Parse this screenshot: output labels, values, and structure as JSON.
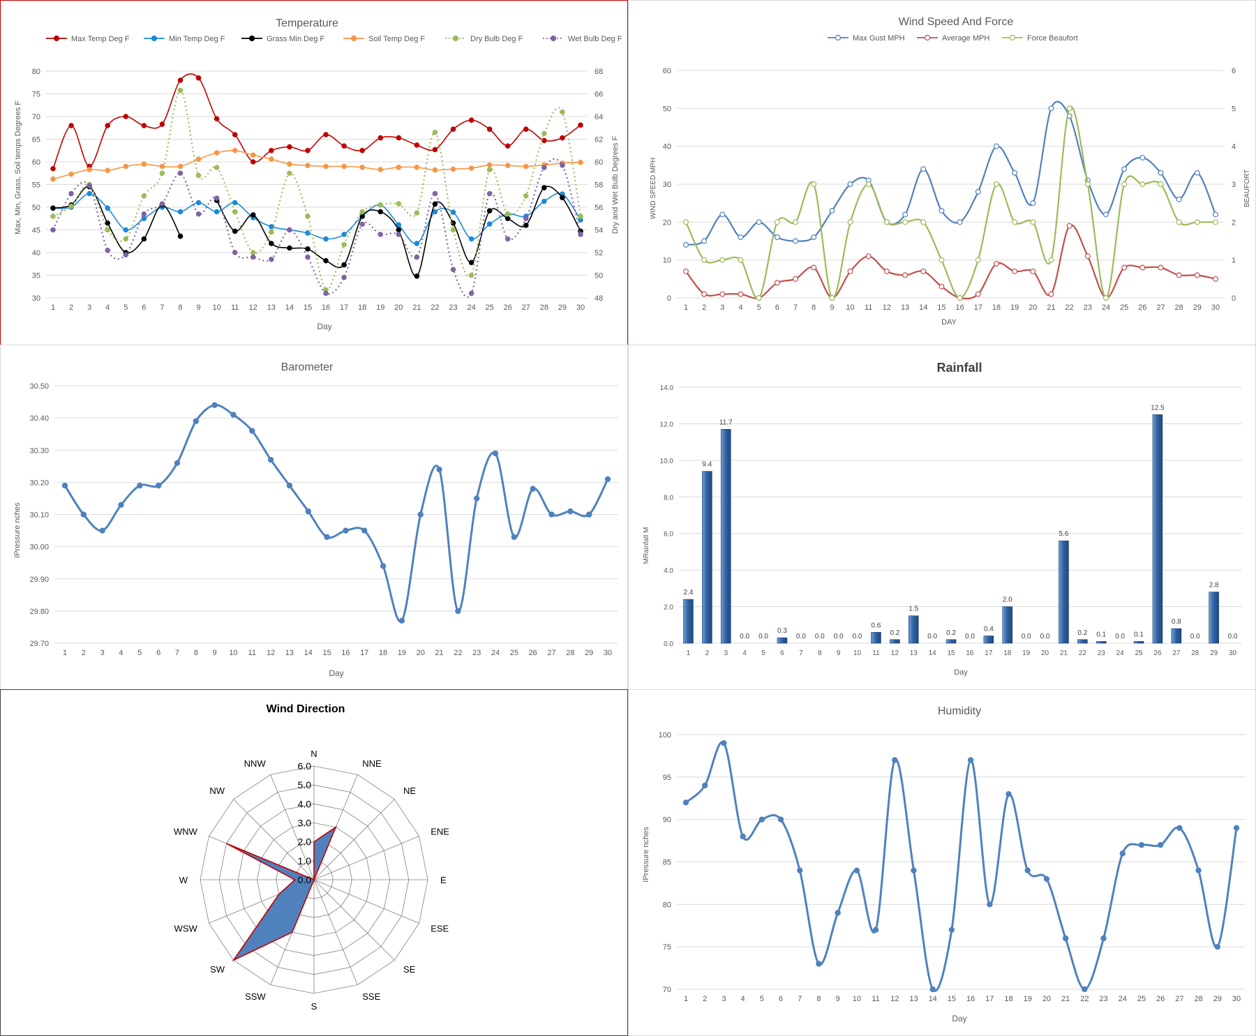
{
  "chart_data": [
    {
      "id": "temperature",
      "type": "line",
      "title": "Temperature",
      "xlabel": "Day",
      "ylabel": "Max, Min, Grass, Soil temps Degrees F",
      "y2label": "Dry and Wet Bulb Degrees F",
      "ylim": [
        30,
        80
      ],
      "y2lim": [
        48,
        68
      ],
      "legend": "top",
      "x": [
        1,
        2,
        3,
        4,
        5,
        6,
        7,
        8,
        9,
        10,
        11,
        12,
        13,
        14,
        15,
        16,
        17,
        18,
        19,
        20,
        21,
        22,
        23,
        24,
        25,
        26,
        27,
        28,
        29,
        30
      ],
      "series": [
        {
          "name": "Max Temp Deg F",
          "color": "#c00000",
          "axis": "left",
          "style": "solid",
          "values": [
            58.5,
            68,
            59,
            68,
            70,
            68,
            68.3,
            78,
            78.5,
            69.5,
            66,
            60,
            62.5,
            63.3,
            62.5,
            66,
            63.5,
            62.5,
            65.3,
            65.3,
            63.7,
            62.7,
            67.2,
            69.2,
            67.2,
            63.5,
            67.2,
            64.7,
            65.3,
            68.1
          ]
        },
        {
          "name": "Min Temp Deg F",
          "color": "#1a8ad8",
          "axis": "left",
          "style": "solid",
          "values": [
            49.8,
            50,
            53,
            49.8,
            45,
            47.5,
            50,
            49,
            51,
            49,
            51,
            47.7,
            45.7,
            45,
            44.3,
            43,
            44,
            48,
            50.5,
            46.1,
            42,
            49,
            48.9,
            43,
            46.3,
            48.5,
            48,
            51.3,
            52.9,
            47.2
          ]
        },
        {
          "name": "Grass Min Deg F",
          "color": "#000000",
          "axis": "left",
          "style": "solid",
          "values": [
            49.8,
            50.5,
            54.5,
            46.5,
            40,
            43,
            50.5,
            43.6,
            null,
            51.5,
            44.7,
            48.3,
            42,
            41,
            40.8,
            38.2,
            37.3,
            48,
            49,
            45,
            34.8,
            50.7,
            46.5,
            37.8,
            49.2,
            47.5,
            46,
            54.3,
            52.1,
            44.7
          ]
        },
        {
          "name": "Soil Temp Deg F",
          "color": "#f79646",
          "axis": "left",
          "style": "solid",
          "values": [
            56.2,
            57.3,
            58.3,
            58.1,
            59,
            59.5,
            59,
            59,
            60.6,
            62,
            62.5,
            61.5,
            60.6,
            59.5,
            59.2,
            59,
            59,
            58.8,
            58.3,
            58.8,
            58.8,
            58.2,
            58.4,
            58.6,
            59.3,
            59.2,
            59,
            59.3,
            59.7,
            59.9
          ]
        },
        {
          "name": "Dry Bulb Deg F",
          "color": "#9bbb59",
          "axis": "right",
          "style": "dotted",
          "values": [
            55.2,
            56.1,
            58,
            54,
            53.2,
            57,
            59,
            66.3,
            58.8,
            59.5,
            55.6,
            52,
            53.8,
            59,
            55.2,
            48.7,
            52.7,
            55.6,
            56.2,
            56.3,
            55.5,
            62.6,
            54,
            50,
            59.3,
            55.4,
            57,
            62.5,
            64.4,
            55.2
          ]
        },
        {
          "name": "Wet Bulb Deg F",
          "color": "#8064a2",
          "axis": "right",
          "style": "dotted",
          "values": [
            54,
            57.2,
            57.9,
            52.2,
            51.8,
            55.4,
            56.3,
            59,
            55.4,
            56.8,
            52,
            51.6,
            51.4,
            54,
            51.6,
            48.4,
            49.8,
            54.5,
            53.6,
            53.6,
            51.6,
            57.2,
            50.5,
            48.4,
            57.2,
            53.2,
            55,
            59.5,
            59.7,
            53.6
          ]
        }
      ]
    },
    {
      "id": "wind-speed",
      "type": "line",
      "title": "Wind Speed And Force",
      "xlabel": "DAY",
      "ylabel": "WIND SPEED MPH",
      "y2label": "BEAUFORT",
      "ylim": [
        0,
        60
      ],
      "y2lim": [
        0,
        6
      ],
      "legend": "top",
      "x": [
        1,
        2,
        3,
        4,
        5,
        6,
        7,
        8,
        9,
        10,
        11,
        12,
        13,
        14,
        15,
        16,
        17,
        18,
        19,
        20,
        21,
        22,
        23,
        24,
        25,
        26,
        27,
        28,
        29,
        30
      ],
      "series": [
        {
          "name": "Max Gust MPH",
          "color": "#4f81bd",
          "axis": "left",
          "values": [
            14,
            15,
            22,
            16,
            20,
            16,
            15,
            16,
            23,
            30,
            31,
            20,
            22,
            34,
            23,
            20,
            28,
            40,
            33,
            25,
            50,
            48,
            31,
            22,
            34,
            37,
            33,
            26,
            33,
            22
          ]
        },
        {
          "name": "Average MPH",
          "color": "#c0504d",
          "axis": "left",
          "values": [
            7,
            1,
            1,
            1,
            0,
            4,
            5,
            8,
            0,
            7,
            11,
            7,
            6,
            7,
            3,
            0,
            1,
            9,
            7,
            7,
            1,
            19,
            11,
            0,
            8,
            8,
            8,
            6,
            6,
            5
          ]
        },
        {
          "name": "Force Beaufort",
          "color": "#9bbb59",
          "axis": "right",
          "values": [
            2,
            1,
            1,
            1,
            0,
            2,
            2,
            3,
            0,
            2,
            3,
            2,
            2,
            2,
            1,
            0,
            1,
            3,
            2,
            2,
            1,
            5,
            3,
            0,
            3,
            3,
            3,
            2,
            2,
            2
          ]
        }
      ]
    },
    {
      "id": "barometer",
      "type": "line",
      "title": "Barometer",
      "xlabel": "Day",
      "ylabel": "IPressure nches",
      "ylim": [
        29.7,
        30.5
      ],
      "x": [
        1,
        2,
        3,
        4,
        5,
        6,
        7,
        8,
        9,
        10,
        11,
        12,
        13,
        14,
        15,
        16,
        17,
        18,
        19,
        20,
        21,
        22,
        23,
        24,
        25,
        26,
        27,
        28,
        29,
        30
      ],
      "series": [
        {
          "color": "#4f81bd",
          "values": [
            30.19,
            30.1,
            30.05,
            30.13,
            30.19,
            30.19,
            30.26,
            30.39,
            30.44,
            30.41,
            30.36,
            30.27,
            30.19,
            30.11,
            30.03,
            30.05,
            30.05,
            29.94,
            29.77,
            30.1,
            30.24,
            29.8,
            30.15,
            30.29,
            30.03,
            30.18,
            30.1,
            30.11,
            30.1,
            30.21
          ]
        }
      ]
    },
    {
      "id": "rainfall",
      "type": "bar",
      "title": "Rainfall",
      "xlabel": "Day",
      "ylabel": "MRainfall M",
      "ylim": [
        0,
        14
      ],
      "categories": [
        "1",
        "2",
        "3",
        "4",
        "5",
        "6",
        "7",
        "8",
        "9",
        "10",
        "11",
        "12",
        "13",
        "14",
        "15",
        "16",
        "17",
        "18",
        "19",
        "20",
        "21",
        "22",
        "23",
        "24",
        "25",
        "26",
        "27",
        "28",
        "29",
        "30"
      ],
      "values": [
        2.4,
        9.4,
        11.7,
        0.0,
        0.0,
        0.3,
        0.0,
        0.0,
        0.0,
        0.0,
        0.6,
        0.2,
        1.5,
        0.0,
        0.2,
        0.0,
        0.4,
        2.0,
        0.0,
        0.0,
        5.6,
        0.2,
        0.1,
        0.0,
        0.1,
        12.5,
        0.8,
        0.0,
        2.8,
        0.0
      ],
      "data_labels": [
        "2.4",
        "9.4",
        "11.7",
        "0.0",
        "0.0",
        "0.3",
        "0.0",
        "0.0",
        "0.0",
        "0.0",
        "0.6",
        "0.2",
        "1.5",
        "0.0",
        "0.2",
        "0.0",
        "0.4",
        "2.0",
        "0.0",
        "0.0",
        "5.6",
        "0.2",
        "0.1",
        "0.0",
        "0.1",
        "12.5",
        "0.8",
        "0.0",
        "2.8",
        "0.0"
      ],
      "color": "#4f81bd"
    },
    {
      "id": "wind-direction",
      "type": "radar",
      "title": "Wind Direction",
      "rlim": [
        0,
        6
      ],
      "rticks": [
        "0.0",
        "1.0",
        "2.0",
        "3.0",
        "4.0",
        "5.0",
        "6.0"
      ],
      "categories": [
        "N",
        "NNE",
        "NE",
        "ENE",
        "E",
        "ESE",
        "SE",
        "SSE",
        "S",
        "SSW",
        "SW",
        "WSW",
        "W",
        "WNW",
        "NW",
        "NNW"
      ],
      "values": [
        2,
        3,
        0,
        0,
        0,
        0,
        0,
        0,
        0,
        3,
        6,
        2,
        1,
        5,
        0,
        0
      ],
      "color": "#4f81bd",
      "edge_color": "#c00000"
    },
    {
      "id": "humidity",
      "type": "line",
      "title": "Humidity",
      "xlabel": "Day",
      "ylabel": "IPressure nches",
      "ylim": [
        70,
        100
      ],
      "x": [
        1,
        2,
        3,
        4,
        5,
        6,
        7,
        8,
        9,
        10,
        11,
        12,
        13,
        14,
        15,
        16,
        17,
        18,
        19,
        20,
        21,
        22,
        23,
        24,
        25,
        26,
        27,
        28,
        29,
        30
      ],
      "series": [
        {
          "color": "#4f81bd",
          "values": [
            92,
            94,
            99,
            88,
            90,
            90,
            84,
            73,
            79,
            84,
            77,
            97,
            84,
            70,
            77,
            97,
            80,
            93,
            84,
            83,
            76,
            70,
            76,
            86,
            87,
            87,
            89,
            84,
            75,
            89
          ]
        }
      ]
    }
  ]
}
